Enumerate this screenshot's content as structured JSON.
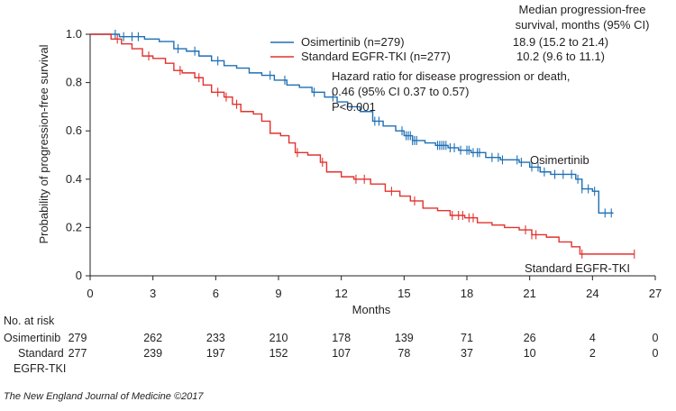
{
  "chart_data": {
    "type": "line",
    "subtype": "kaplan-meier",
    "xlabel": "Months",
    "ylabel": "Probability of progression-free survival",
    "xlim": [
      0,
      27
    ],
    "ylim": [
      0,
      1.0
    ],
    "x_ticks": [
      "0",
      "3",
      "6",
      "9",
      "12",
      "15",
      "18",
      "21",
      "24",
      "27"
    ],
    "y_ticks": [
      "0",
      "0.2",
      "0.4",
      "0.6",
      "0.8",
      "1.0"
    ],
    "legend": {
      "position": "top-center",
      "entries": [
        "Osimertinib (n=279)",
        "Standard EGFR-TKI (n=277)"
      ]
    },
    "median_header": [
      "Median progression-free",
      "survival, months (95% CI)"
    ],
    "median_values": [
      "18.9 (15.2 to 21.4)",
      "10.2 (9.6 to 11.1)"
    ],
    "hazard_text": [
      "Hazard ratio for disease progression or death,",
      "0.46 (95% CI 0.37 to 0.57)",
      "P<0.001"
    ],
    "curve_labels": {
      "osimertinib": "Osimertinib",
      "standard": "Standard EGFR-TKI"
    },
    "series": [
      {
        "name": "Osimertinib",
        "color": "#1f6fb5",
        "steps": [
          [
            0,
            1.0
          ],
          [
            1.4,
            0.99
          ],
          [
            2.6,
            0.98
          ],
          [
            3.3,
            0.97
          ],
          [
            4.0,
            0.94
          ],
          [
            4.6,
            0.93
          ],
          [
            5.2,
            0.91
          ],
          [
            5.8,
            0.89
          ],
          [
            6.4,
            0.87
          ],
          [
            7.0,
            0.86
          ],
          [
            7.6,
            0.84
          ],
          [
            8.2,
            0.83
          ],
          [
            8.8,
            0.81
          ],
          [
            9.4,
            0.79
          ],
          [
            10.0,
            0.78
          ],
          [
            10.6,
            0.76
          ],
          [
            11.2,
            0.74
          ],
          [
            11.8,
            0.72
          ],
          [
            12.3,
            0.7
          ],
          [
            12.9,
            0.68
          ],
          [
            13.5,
            0.64
          ],
          [
            14.0,
            0.62
          ],
          [
            14.6,
            0.6
          ],
          [
            15.0,
            0.58
          ],
          [
            15.4,
            0.56
          ],
          [
            16.0,
            0.55
          ],
          [
            16.5,
            0.54
          ],
          [
            17.1,
            0.53
          ],
          [
            17.6,
            0.52
          ],
          [
            18.2,
            0.51
          ],
          [
            18.9,
            0.49
          ],
          [
            19.6,
            0.48
          ],
          [
            20.5,
            0.47
          ],
          [
            21.0,
            0.45
          ],
          [
            21.5,
            0.43
          ],
          [
            22.0,
            0.42
          ],
          [
            22.8,
            0.42
          ],
          [
            23.2,
            0.4
          ],
          [
            23.5,
            0.36
          ],
          [
            24.0,
            0.35
          ],
          [
            24.3,
            0.26
          ],
          [
            25.0,
            0.26
          ]
        ],
        "censor_x": [
          1.2,
          1.6,
          2.0,
          2.3,
          4.2,
          5.0,
          6.1,
          8.6,
          9.3,
          10.7,
          11.6,
          13.6,
          13.8,
          14.9,
          15.1,
          15.2,
          15.3,
          15.4,
          15.5,
          15.6,
          16.6,
          16.7,
          16.8,
          16.9,
          17.0,
          17.2,
          17.4,
          17.7,
          18.0,
          18.1,
          18.3,
          18.5,
          18.6,
          19.2,
          19.5,
          19.7,
          20.4,
          20.6,
          21.1,
          21.4,
          21.7,
          22.2,
          22.6,
          23.0,
          23.3,
          23.5,
          23.8,
          24.1,
          24.6,
          24.9
        ],
        "at_risk": [
          "279",
          "262",
          "233",
          "210",
          "178",
          "139",
          "71",
          "26",
          "4",
          "0"
        ]
      },
      {
        "name": "Standard EGFR-TKI",
        "color": "#e2322d",
        "steps": [
          [
            0,
            1.0
          ],
          [
            1.0,
            0.98
          ],
          [
            1.5,
            0.96
          ],
          [
            2.0,
            0.94
          ],
          [
            2.5,
            0.91
          ],
          [
            3.0,
            0.9
          ],
          [
            3.6,
            0.88
          ],
          [
            4.0,
            0.85
          ],
          [
            4.4,
            0.84
          ],
          [
            5.0,
            0.82
          ],
          [
            5.4,
            0.79
          ],
          [
            5.8,
            0.76
          ],
          [
            6.4,
            0.74
          ],
          [
            6.8,
            0.71
          ],
          [
            7.2,
            0.68
          ],
          [
            7.8,
            0.67
          ],
          [
            8.2,
            0.64
          ],
          [
            8.6,
            0.59
          ],
          [
            9.1,
            0.58
          ],
          [
            9.5,
            0.55
          ],
          [
            9.8,
            0.51
          ],
          [
            10.4,
            0.5
          ],
          [
            11.0,
            0.47
          ],
          [
            11.3,
            0.43
          ],
          [
            12.0,
            0.41
          ],
          [
            12.6,
            0.4
          ],
          [
            13.4,
            0.38
          ],
          [
            14.1,
            0.35
          ],
          [
            14.8,
            0.33
          ],
          [
            15.3,
            0.31
          ],
          [
            15.9,
            0.28
          ],
          [
            16.6,
            0.27
          ],
          [
            17.2,
            0.25
          ],
          [
            17.9,
            0.24
          ],
          [
            18.5,
            0.22
          ],
          [
            19.2,
            0.21
          ],
          [
            19.8,
            0.2
          ],
          [
            20.5,
            0.19
          ],
          [
            21.1,
            0.17
          ],
          [
            21.8,
            0.16
          ],
          [
            22.4,
            0.14
          ],
          [
            23.0,
            0.12
          ],
          [
            23.4,
            0.09
          ],
          [
            26.0,
            0.09
          ]
        ],
        "censor_x": [
          1.3,
          2.8,
          4.3,
          5.2,
          6.1,
          6.5,
          7.0,
          9.9,
          11.1,
          12.7,
          13.1,
          14.4,
          15.5,
          17.3,
          17.6,
          17.8,
          18.1,
          18.3,
          20.8,
          21.1,
          21.3,
          23.5,
          26.0
        ],
        "at_risk": [
          "277",
          "239",
          "197",
          "152",
          "107",
          "78",
          "37",
          "10",
          "2",
          "0"
        ]
      }
    ],
    "at_risk_header": "No. at risk",
    "at_risk_rows": [
      "Osimertinib",
      "Standard",
      "EGFR-TKI"
    ]
  },
  "credit": "The New England Journal of Medicine ©2017"
}
